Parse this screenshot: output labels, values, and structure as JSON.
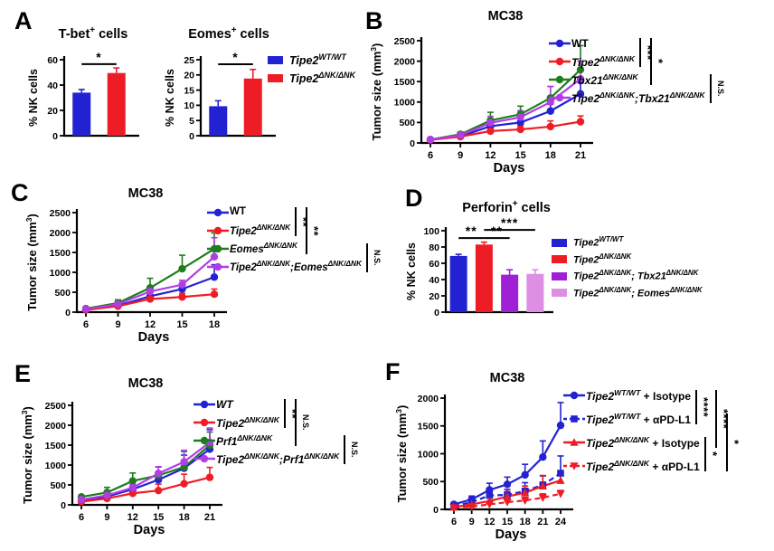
{
  "panels": {
    "a": {
      "letter": "A"
    },
    "b": {
      "letter": "B"
    },
    "c": {
      "letter": "C"
    },
    "d": {
      "letter": "D"
    },
    "e": {
      "letter": "E"
    },
    "f": {
      "letter": "F"
    }
  },
  "colors": {
    "blue": "#2222d3",
    "red": "#ee1c25",
    "green": "#1f7d1f",
    "purple": "#b13de6",
    "dark_purple": "#a020d6",
    "light_violet": "#dc8fe3"
  },
  "chart_data": [
    {
      "panel": "A",
      "type": "bar",
      "title_parts": [
        {
          "t": "T-bet"
        },
        {
          "t": "+",
          "sup": true
        },
        {
          "t": " cells"
        }
      ],
      "ylabel": "% NK cells",
      "ylim": [
        0,
        60
      ],
      "yticks": [
        0,
        20,
        40,
        60
      ],
      "values": [
        34,
        49.5
      ],
      "errors": [
        2.5,
        4
      ],
      "colors": [
        "#2222d3",
        "#ee1c25"
      ],
      "sig": [
        {
          "i1": 0,
          "i2": 1,
          "label": "*",
          "y": 56.5
        }
      ],
      "legend": [
        {
          "color": "#2222d3",
          "parts": [
            {
              "t": "Tipe2"
            },
            {
              "t": "WT/WT",
              "sup": true
            }
          ]
        },
        {
          "color": "#ee1c25",
          "parts": [
            {
              "t": "Tipe2"
            },
            {
              "t": "ΔNK/ΔNK",
              "sup": true
            }
          ]
        }
      ]
    },
    {
      "panel": "A",
      "type": "bar",
      "title_parts": [
        {
          "t": "Eomes"
        },
        {
          "t": "+",
          "sup": true
        },
        {
          "t": " cells"
        }
      ],
      "ylabel": "% NK cells",
      "ylim": [
        0,
        25
      ],
      "yticks": [
        0,
        5,
        10,
        15,
        20,
        25
      ],
      "values": [
        9.7,
        18.8
      ],
      "errors": [
        1.8,
        3
      ],
      "colors": [
        "#2222d3",
        "#ee1c25"
      ],
      "sig": [
        {
          "i1": 0,
          "i2": 1,
          "label": "*",
          "y": 23.5
        }
      ]
    },
    {
      "panel": "B",
      "type": "line",
      "title": "MC38",
      "xlabel": "Days",
      "ylabel_parts": [
        {
          "t": "Tumor size (mm"
        },
        {
          "t": "3",
          "sup": true
        },
        {
          "t": ")"
        }
      ],
      "x": [
        6,
        9,
        12,
        15,
        18,
        21
      ],
      "ylim": [
        0,
        2500
      ],
      "yticks": [
        0,
        500,
        1000,
        1500,
        2000,
        2500
      ],
      "series": [
        {
          "parts": [
            {
              "t": "WT",
              "up": true
            }
          ],
          "color": "#2222d3",
          "marker": "circle",
          "dash": false,
          "values": [
            80,
            160,
            410,
            500,
            780,
            1200
          ],
          "errors": [
            25,
            45,
            90,
            110,
            170,
            280
          ]
        },
        {
          "parts": [
            {
              "t": "Tipe2"
            },
            {
              "t": "ΔNK/ΔNK",
              "sup": true
            }
          ],
          "color": "#ee1c25",
          "marker": "circle",
          "dash": false,
          "values": [
            75,
            155,
            290,
            330,
            400,
            520
          ],
          "errors": [
            25,
            40,
            60,
            90,
            140,
            140
          ]
        },
        {
          "parts": [
            {
              "t": "Tbx21"
            },
            {
              "t": "ΔNK/ΔNK",
              "sup": true
            }
          ],
          "color": "#1f7d1f",
          "marker": "circle",
          "dash": false,
          "values": [
            85,
            210,
            550,
            700,
            1100,
            1790
          ],
          "errors": [
            30,
            55,
            200,
            200,
            280,
            590
          ]
        },
        {
          "parts": [
            {
              "t": "Tipe2"
            },
            {
              "t": "ΔNK/ΔNK",
              "sup": true
            },
            {
              "t": ";Tbx21"
            },
            {
              "t": "ΔNK/ΔNK",
              "sup": true
            }
          ],
          "color": "#b13de6",
          "marker": "circle",
          "dash": false,
          "values": [
            80,
            190,
            490,
            630,
            1000,
            1570
          ],
          "errors": [
            30,
            50,
            160,
            160,
            380,
            430
          ]
        }
      ],
      "comparisons": [
        {
          "rows": [
            0,
            1
          ],
          "label": "***"
        },
        {
          "rows": [
            0,
            2
          ],
          "label": "*"
        },
        {
          "rows": [
            2,
            3
          ],
          "label": "N.S."
        }
      ]
    },
    {
      "panel": "C",
      "type": "line",
      "title": "MC38",
      "xlabel": "Days",
      "ylabel_parts": [
        {
          "t": "Tumor size (mm"
        },
        {
          "t": "3",
          "sup": true
        },
        {
          "t": ")"
        }
      ],
      "x": [
        6,
        9,
        12,
        15,
        18
      ],
      "ylim": [
        0,
        2500
      ],
      "yticks": [
        0,
        500,
        1000,
        1500,
        2000,
        2500
      ],
      "series": [
        {
          "parts": [
            {
              "t": "WT",
              "up": true
            }
          ],
          "color": "#2222d3",
          "marker": "circle",
          "dash": false,
          "values": [
            60,
            160,
            400,
            580,
            880
          ],
          "errors": [
            20,
            60,
            100,
            130,
            310
          ]
        },
        {
          "parts": [
            {
              "t": "Tipe2"
            },
            {
              "t": "ΔNK/ΔNK",
              "sup": true
            }
          ],
          "color": "#ee1c25",
          "marker": "circle",
          "dash": false,
          "values": [
            55,
            150,
            330,
            380,
            450
          ],
          "errors": [
            20,
            55,
            80,
            90,
            130
          ]
        },
        {
          "parts": [
            {
              "t": "Eomes"
            },
            {
              "t": "ΔNK/ΔNK",
              "sup": true
            }
          ],
          "color": "#1f7d1f",
          "marker": "circle",
          "dash": false,
          "values": [
            90,
            230,
            610,
            1090,
            1590
          ],
          "errors": [
            30,
            80,
            240,
            340,
            400
          ]
        },
        {
          "parts": [
            {
              "t": "Tipe2"
            },
            {
              "t": "ΔNK/ΔNK",
              "sup": true
            },
            {
              "t": ";Eomes"
            },
            {
              "t": "ΔNK/ΔNK",
              "sup": true
            }
          ],
          "color": "#b13de6",
          "marker": "circle",
          "dash": false,
          "values": [
            75,
            200,
            520,
            690,
            1390
          ],
          "errors": [
            25,
            80,
            100,
            110,
            480
          ]
        }
      ],
      "comparisons": [
        {
          "rows": [
            0,
            1
          ],
          "label": "**"
        },
        {
          "rows": [
            0,
            2
          ],
          "label": "**"
        },
        {
          "rows": [
            2,
            3
          ],
          "label": "N.S."
        }
      ]
    },
    {
      "panel": "D",
      "type": "bar",
      "title_parts": [
        {
          "t": "Perforin"
        },
        {
          "t": "+",
          "sup": true
        },
        {
          "t": " cells"
        }
      ],
      "ylabel": "% NK cells",
      "ylim": [
        0,
        100
      ],
      "yticks": [
        0,
        20,
        40,
        60,
        80,
        100
      ],
      "values": [
        69,
        83,
        46,
        47
      ],
      "errors": [
        2,
        3,
        6,
        5
      ],
      "colors": [
        "#2222d3",
        "#ee1c25",
        "#a020d6",
        "#dc8fe3"
      ],
      "sig": [
        {
          "i1": 0,
          "i2": 1,
          "label": "**",
          "y": 91
        },
        {
          "i1": 1,
          "i2": 2,
          "label": "**",
          "y": 91
        },
        {
          "i1": 1,
          "i2": 3,
          "label": "***",
          "y": 101
        }
      ],
      "legend": [
        {
          "color": "#2222d3",
          "parts": [
            {
              "t": "Tipe2"
            },
            {
              "t": "WT/WT",
              "sup": true
            }
          ]
        },
        {
          "color": "#ee1c25",
          "parts": [
            {
              "t": "Tipe2"
            },
            {
              "t": "ΔNK/ΔNK",
              "sup": true
            }
          ]
        },
        {
          "color": "#a020d6",
          "parts": [
            {
              "t": "Tipe2"
            },
            {
              "t": "ΔNK/ΔNK",
              "sup": true
            },
            {
              "t": "; Tbx21"
            },
            {
              "t": "ΔNK/ΔNK",
              "sup": true
            }
          ]
        },
        {
          "color": "#dc8fe3",
          "parts": [
            {
              "t": "Tipe2"
            },
            {
              "t": "ΔNK/ΔNK",
              "sup": true
            },
            {
              "t": "; Eomes"
            },
            {
              "t": "ΔNK/ΔNK",
              "sup": true
            }
          ]
        }
      ]
    },
    {
      "panel": "E",
      "type": "line",
      "title": "MC38",
      "xlabel": "Days",
      "ylabel_parts": [
        {
          "t": "Tumor size (mm"
        },
        {
          "t": "3",
          "sup": true
        },
        {
          "t": ")"
        }
      ],
      "x": [
        6,
        9,
        12,
        15,
        18,
        21
      ],
      "ylim": [
        0,
        2500
      ],
      "yticks": [
        0,
        500,
        1000,
        1500,
        2000,
        2500
      ],
      "series": [
        {
          "parts": [
            {
              "t": "WT"
            }
          ],
          "color": "#2222d3",
          "marker": "circle",
          "dash": false,
          "values": [
            90,
            210,
            390,
            630,
            920,
            1400
          ],
          "errors": [
            30,
            90,
            110,
            150,
            330,
            490
          ]
        },
        {
          "parts": [
            {
              "t": "Tipe2"
            },
            {
              "t": "ΔNK/ΔNK",
              "sup": true
            }
          ],
          "color": "#ee1c25",
          "marker": "circle",
          "dash": false,
          "values": [
            80,
            160,
            290,
            360,
            530,
            690
          ],
          "errors": [
            30,
            60,
            110,
            160,
            240,
            250
          ]
        },
        {
          "parts": [
            {
              "t": "Prf1"
            },
            {
              "t": "ΔNK/ΔNK",
              "sup": true
            }
          ],
          "color": "#1f7d1f",
          "marker": "circle",
          "dash": false,
          "values": [
            200,
            310,
            600,
            740,
            950,
            1500
          ],
          "errors": [
            40,
            130,
            200,
            210,
            390,
            330
          ]
        },
        {
          "parts": [
            {
              "t": "Tipe2"
            },
            {
              "t": "ΔNK/ΔNK",
              "sup": true
            },
            {
              "t": ";Prf1"
            },
            {
              "t": "ΔNK/ΔNK",
              "sup": true
            }
          ],
          "color": "#b13de6",
          "marker": "circle",
          "dash": false,
          "values": [
            130,
            240,
            430,
            790,
            1080,
            1570
          ],
          "errors": [
            40,
            90,
            130,
            170,
            290,
            360
          ]
        }
      ],
      "comparisons": [
        {
          "rows": [
            0,
            1
          ],
          "label": "**"
        },
        {
          "rows": [
            0,
            2
          ],
          "label": "N.S."
        },
        {
          "rows": [
            2,
            3
          ],
          "label": "N.S."
        }
      ]
    },
    {
      "panel": "F",
      "type": "line",
      "title": "MC38",
      "xlabel": "Days",
      "ylabel_parts": [
        {
          "t": "Tumor size (mm"
        },
        {
          "t": "3",
          "sup": true
        },
        {
          "t": ")"
        }
      ],
      "x": [
        6,
        9,
        12,
        15,
        18,
        21,
        24
      ],
      "ylim": [
        0,
        2000
      ],
      "yticks": [
        0,
        500,
        1000,
        1500,
        2000
      ],
      "series": [
        {
          "parts": [
            {
              "t": "Tipe2"
            },
            {
              "t": "WT/WT",
              "sup": true
            },
            {
              "t": " + Isotype",
              "up": true
            }
          ],
          "color": "#2222d3",
          "marker": "circle",
          "dash": false,
          "values": [
            90,
            180,
            350,
            450,
            620,
            940,
            1510
          ],
          "errors": [
            30,
            60,
            120,
            130,
            190,
            290,
            410
          ]
        },
        {
          "parts": [
            {
              "t": "Tipe2"
            },
            {
              "t": "WT/WT",
              "sup": true
            },
            {
              "t": " + αPD-L1",
              "up": true
            }
          ],
          "color": "#2222d3",
          "marker": "square",
          "dash": true,
          "values": [
            60,
            130,
            250,
            260,
            330,
            440,
            650
          ],
          "errors": [
            20,
            50,
            90,
            100,
            150,
            160,
            310
          ]
        },
        {
          "parts": [
            {
              "t": "Tipe2"
            },
            {
              "t": "ΔNK/ΔNK",
              "sup": true
            },
            {
              "t": " + Isotype",
              "up": true
            }
          ],
          "color": "#ee1c25",
          "marker": "triangle-up",
          "dash": false,
          "values": [
            40,
            90,
            150,
            230,
            300,
            420,
            520
          ],
          "errors": [
            15,
            40,
            60,
            90,
            120,
            190,
            140
          ]
        },
        {
          "parts": [
            {
              "t": "Tipe2"
            },
            {
              "t": "ΔNK/ΔNK",
              "sup": true
            },
            {
              "t": " + αPD-L1",
              "up": true
            }
          ],
          "color": "#ee1c25",
          "marker": "triangle-down",
          "dash": true,
          "values": [
            30,
            50,
            90,
            130,
            160,
            210,
            280
          ],
          "errors": [
            10,
            20,
            40,
            50,
            60,
            70,
            60
          ]
        }
      ],
      "comparisons": [
        {
          "rows": [
            0,
            1
          ],
          "label": "****"
        },
        {
          "rows": [
            2,
            3
          ],
          "label": "*"
        },
        {
          "rows": [
            0,
            2
          ],
          "label": "****"
        },
        {
          "rows": [
            1,
            3
          ],
          "label": "*"
        }
      ]
    }
  ]
}
